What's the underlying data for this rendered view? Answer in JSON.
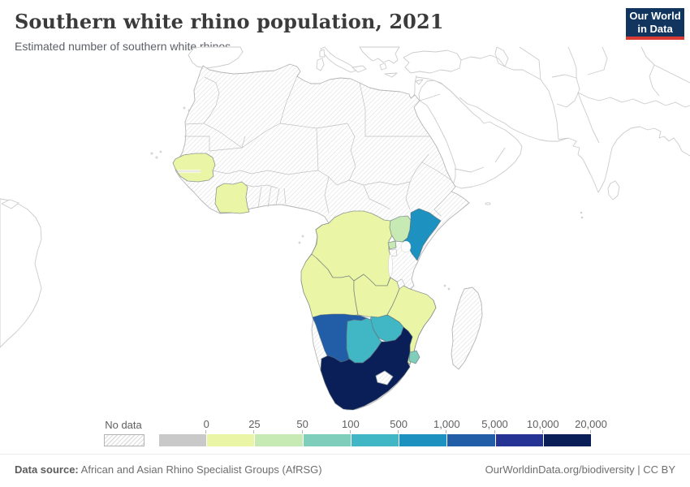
{
  "header": {
    "title": "Southern white rhino population, 2021",
    "subtitle": "Estimated number of southern white rhinos.",
    "logo": {
      "line1": "Our World",
      "line2": "in Data",
      "bg_color": "#12355f",
      "accent_color": "#d93b32"
    }
  },
  "map": {
    "countries": [
      {
        "id": "south-africa",
        "name": "South Africa",
        "color": "#0a1f58",
        "bin": "10,000-20,000"
      },
      {
        "id": "namibia",
        "name": "Namibia",
        "color": "#225ea8",
        "bin": "1,000-5,000"
      },
      {
        "id": "kenya",
        "name": "Kenya",
        "color": "#1d91c0",
        "bin": "500-1,000"
      },
      {
        "id": "botswana",
        "name": "Botswana",
        "color": "#41b6c4",
        "bin": "100-500"
      },
      {
        "id": "zimbabwe",
        "name": "Zimbabwe",
        "color": "#41b6c4",
        "bin": "100-500"
      },
      {
        "id": "eswatini",
        "name": "Eswatini",
        "color": "#7fcdbb",
        "bin": "50-100"
      },
      {
        "id": "uganda",
        "name": "Uganda",
        "color": "#c7e9b4",
        "bin": "25-50"
      },
      {
        "id": "rwanda",
        "name": "Rwanda",
        "color": "#c7e9b4",
        "bin": "25-50"
      },
      {
        "id": "senegal",
        "name": "Senegal",
        "color": "#eaf5a5",
        "bin": "0-25"
      },
      {
        "id": "cote-divoire",
        "name": "Cote d'Ivoire",
        "color": "#eaf5a5",
        "bin": "0-25"
      },
      {
        "id": "drc",
        "name": "Democratic Republic of Congo",
        "color": "#eaf5a5",
        "bin": "0-25"
      },
      {
        "id": "angola",
        "name": "Angola",
        "color": "#eaf5a5",
        "bin": "0-25"
      },
      {
        "id": "zambia",
        "name": "Zambia",
        "color": "#eaf5a5",
        "bin": "0-25"
      },
      {
        "id": "mozambique",
        "name": "Mozambique",
        "color": "#eaf5a5",
        "bin": "0-25"
      }
    ]
  },
  "legend": {
    "no_data_label": "No data",
    "segments": [
      {
        "color": "#c9c9c9",
        "label": "0"
      },
      {
        "color": "#eaf5a5",
        "label": "25"
      },
      {
        "color": "#c7e9b4",
        "label": "50"
      },
      {
        "color": "#7fcdbb",
        "label": "100"
      },
      {
        "color": "#41b6c4",
        "label": "500"
      },
      {
        "color": "#1d91c0",
        "label": "1,000"
      },
      {
        "color": "#225ea8",
        "label": "5,000"
      },
      {
        "color": "#253494",
        "label": "10,000"
      },
      {
        "color": "#0a1f58",
        "label": "20,000"
      }
    ]
  },
  "footer": {
    "source_label": "Data source:",
    "source": "African and Asian Rhino Specialist Groups (AfRSG)",
    "credit": "OurWorldinData.org/biodiversity | CC BY"
  },
  "chart_data": {
    "type": "heatmap",
    "title": "Southern white rhino population, 2021",
    "subtitle": "Estimated number of southern white rhinos.",
    "unit": "southern white rhinos",
    "bins": [
      0,
      25,
      50,
      100,
      500,
      1000,
      5000,
      10000,
      20000
    ],
    "bin_colors": [
      "#c9c9c9",
      "#eaf5a5",
      "#c7e9b4",
      "#7fcdbb",
      "#41b6c4",
      "#1d91c0",
      "#225ea8",
      "#253494",
      "#0a1f58"
    ],
    "legend_position": "bottom",
    "series": [
      {
        "name": "South Africa",
        "bin": "10,000-20,000"
      },
      {
        "name": "Namibia",
        "bin": "1,000-5,000"
      },
      {
        "name": "Kenya",
        "bin": "500-1,000"
      },
      {
        "name": "Botswana",
        "bin": "100-500"
      },
      {
        "name": "Zimbabwe",
        "bin": "100-500"
      },
      {
        "name": "Eswatini",
        "bin": "50-100"
      },
      {
        "name": "Uganda",
        "bin": "25-50"
      },
      {
        "name": "Rwanda",
        "bin": "25-50"
      },
      {
        "name": "Senegal",
        "bin": "0-25"
      },
      {
        "name": "Cote d'Ivoire",
        "bin": "0-25"
      },
      {
        "name": "Democratic Republic of Congo",
        "bin": "0-25"
      },
      {
        "name": "Angola",
        "bin": "0-25"
      },
      {
        "name": "Zambia",
        "bin": "0-25"
      },
      {
        "name": "Mozambique",
        "bin": "0-25"
      }
    ],
    "no_data": "Other African countries shown hatched"
  }
}
